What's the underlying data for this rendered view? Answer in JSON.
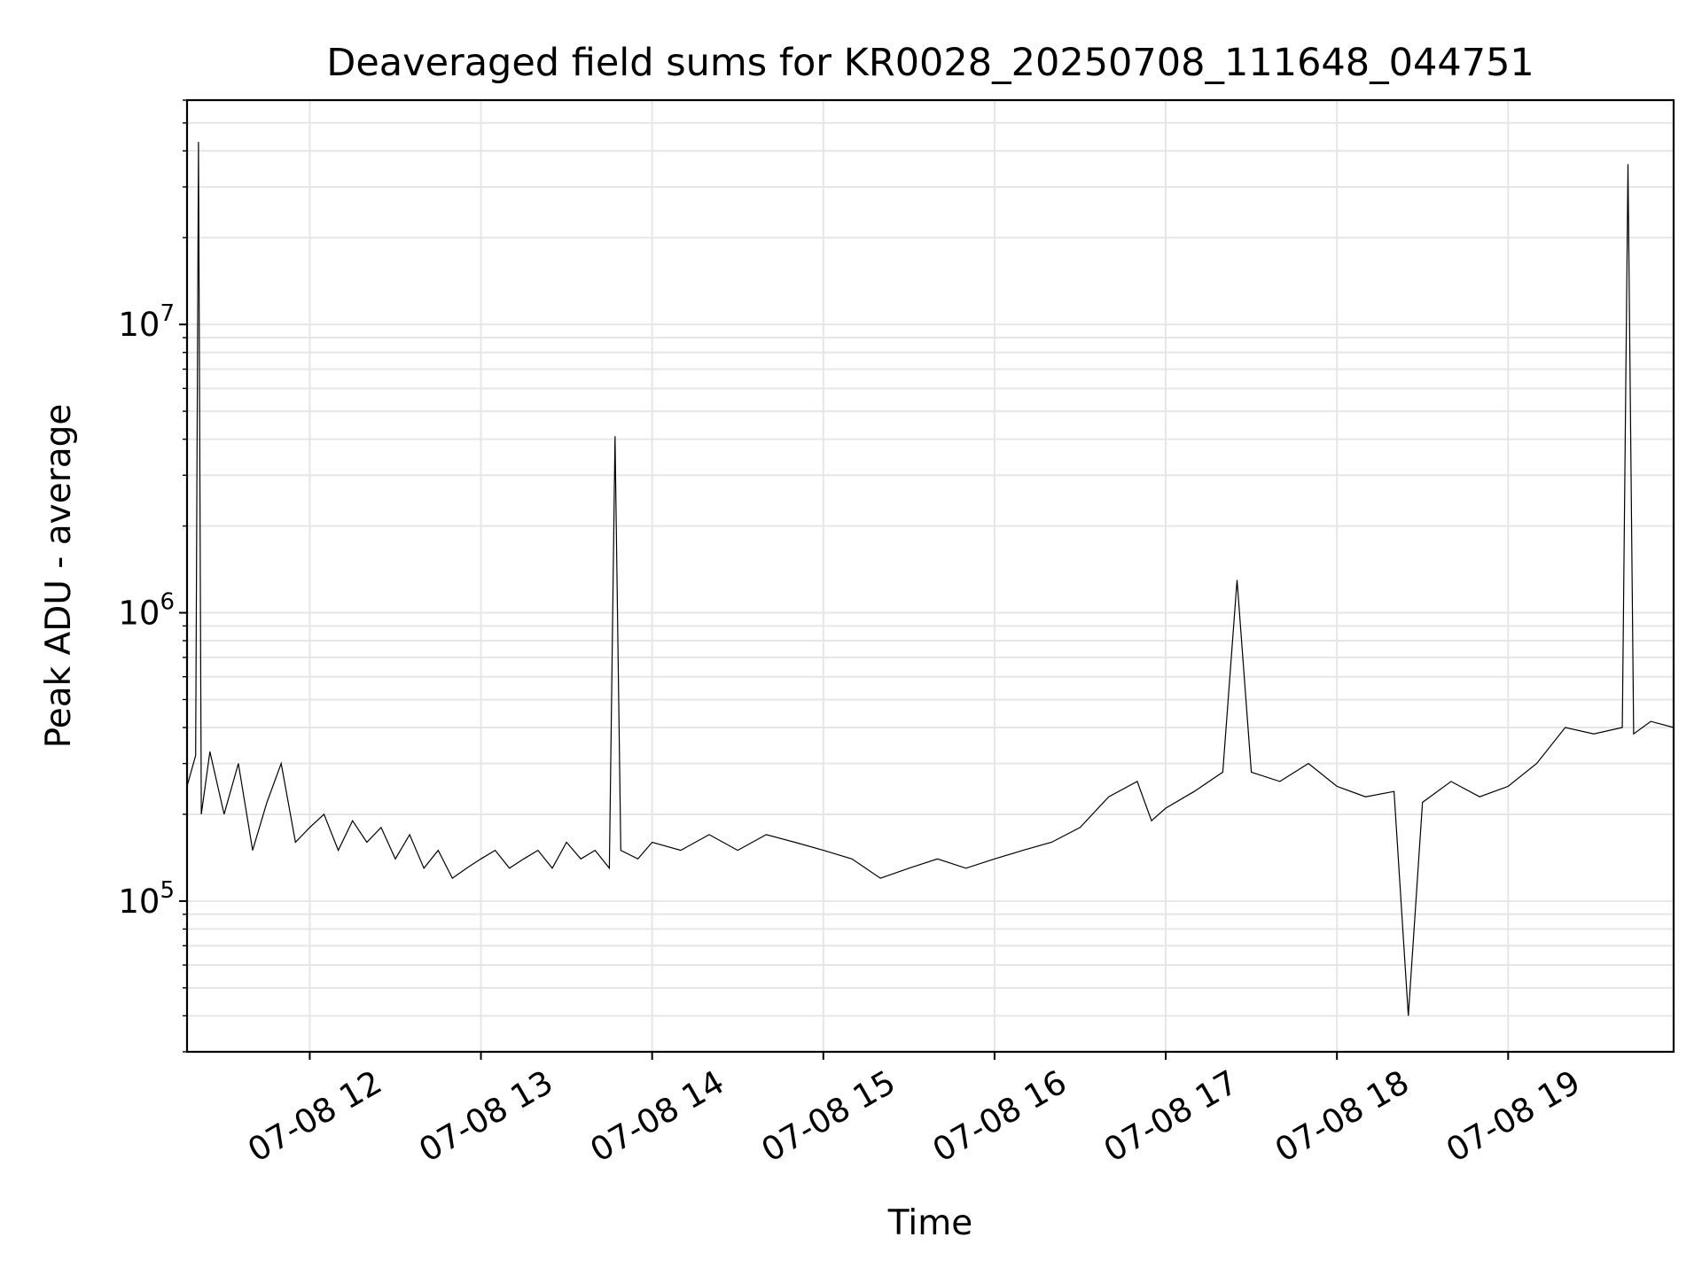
{
  "chart_data": {
    "type": "line",
    "title": "Deaveraged field sums for KR0028_20250708_111648_044751",
    "xlabel": "Time",
    "ylabel": "Peak ADU - average",
    "yscale": "log",
    "ylim": [
      30000,
      60000000
    ],
    "xlim": [
      "2025-07-08 11:17",
      "2025-07-08 19:58"
    ],
    "grid": true,
    "line_color": "#000000",
    "grid_color": "#e6e6e6",
    "x_ticks": [
      {
        "value": "2025-07-08 12:00",
        "label": "07-08 12"
      },
      {
        "value": "2025-07-08 13:00",
        "label": "07-08 13"
      },
      {
        "value": "2025-07-08 14:00",
        "label": "07-08 14"
      },
      {
        "value": "2025-07-08 15:00",
        "label": "07-08 15"
      },
      {
        "value": "2025-07-08 16:00",
        "label": "07-08 16"
      },
      {
        "value": "2025-07-08 17:00",
        "label": "07-08 17"
      },
      {
        "value": "2025-07-08 18:00",
        "label": "07-08 18"
      },
      {
        "value": "2025-07-08 19:00",
        "label": "07-08 19"
      }
    ],
    "y_ticks": [
      {
        "value": 100000,
        "base": "10",
        "exp": "5"
      },
      {
        "value": 1000000,
        "base": "10",
        "exp": "6"
      },
      {
        "value": 10000000,
        "base": "10",
        "exp": "7"
      }
    ],
    "series": [
      {
        "points": [
          [
            "2025-07-08 11:17",
            250000
          ],
          [
            "2025-07-08 11:20",
            320000
          ],
          [
            "2025-07-08 11:21",
            43000000
          ],
          [
            "2025-07-08 11:22",
            200000
          ],
          [
            "2025-07-08 11:25",
            330000
          ],
          [
            "2025-07-08 11:30",
            200000
          ],
          [
            "2025-07-08 11:35",
            300000
          ],
          [
            "2025-07-08 11:40",
            150000
          ],
          [
            "2025-07-08 11:45",
            220000
          ],
          [
            "2025-07-08 11:50",
            300000
          ],
          [
            "2025-07-08 11:55",
            160000
          ],
          [
            "2025-07-08 12:00",
            180000
          ],
          [
            "2025-07-08 12:05",
            200000
          ],
          [
            "2025-07-08 12:10",
            150000
          ],
          [
            "2025-07-08 12:15",
            190000
          ],
          [
            "2025-07-08 12:20",
            160000
          ],
          [
            "2025-07-08 12:25",
            180000
          ],
          [
            "2025-07-08 12:30",
            140000
          ],
          [
            "2025-07-08 12:35",
            170000
          ],
          [
            "2025-07-08 12:40",
            130000
          ],
          [
            "2025-07-08 12:45",
            150000
          ],
          [
            "2025-07-08 12:50",
            120000
          ],
          [
            "2025-07-08 12:55",
            130000
          ],
          [
            "2025-07-08 13:00",
            140000
          ],
          [
            "2025-07-08 13:05",
            150000
          ],
          [
            "2025-07-08 13:10",
            130000
          ],
          [
            "2025-07-08 13:15",
            140000
          ],
          [
            "2025-07-08 13:20",
            150000
          ],
          [
            "2025-07-08 13:25",
            130000
          ],
          [
            "2025-07-08 13:30",
            160000
          ],
          [
            "2025-07-08 13:35",
            140000
          ],
          [
            "2025-07-08 13:40",
            150000
          ],
          [
            "2025-07-08 13:45",
            130000
          ],
          [
            "2025-07-08 13:47",
            4100000
          ],
          [
            "2025-07-08 13:49",
            150000
          ],
          [
            "2025-07-08 13:55",
            140000
          ],
          [
            "2025-07-08 14:00",
            160000
          ],
          [
            "2025-07-08 14:10",
            150000
          ],
          [
            "2025-07-08 14:20",
            170000
          ],
          [
            "2025-07-08 14:30",
            150000
          ],
          [
            "2025-07-08 14:40",
            170000
          ],
          [
            "2025-07-08 14:50",
            160000
          ],
          [
            "2025-07-08 15:00",
            150000
          ],
          [
            "2025-07-08 15:10",
            140000
          ],
          [
            "2025-07-08 15:20",
            120000
          ],
          [
            "2025-07-08 15:30",
            130000
          ],
          [
            "2025-07-08 15:40",
            140000
          ],
          [
            "2025-07-08 15:50",
            130000
          ],
          [
            "2025-07-08 16:00",
            140000
          ],
          [
            "2025-07-08 16:10",
            150000
          ],
          [
            "2025-07-08 16:20",
            160000
          ],
          [
            "2025-07-08 16:30",
            180000
          ],
          [
            "2025-07-08 16:40",
            230000
          ],
          [
            "2025-07-08 16:50",
            260000
          ],
          [
            "2025-07-08 16:55",
            190000
          ],
          [
            "2025-07-08 17:00",
            210000
          ],
          [
            "2025-07-08 17:10",
            240000
          ],
          [
            "2025-07-08 17:20",
            280000
          ],
          [
            "2025-07-08 17:25",
            1300000
          ],
          [
            "2025-07-08 17:30",
            280000
          ],
          [
            "2025-07-08 17:40",
            260000
          ],
          [
            "2025-07-08 17:50",
            300000
          ],
          [
            "2025-07-08 18:00",
            250000
          ],
          [
            "2025-07-08 18:10",
            230000
          ],
          [
            "2025-07-08 18:20",
            240000
          ],
          [
            "2025-07-08 18:25",
            40000
          ],
          [
            "2025-07-08 18:30",
            220000
          ],
          [
            "2025-07-08 18:40",
            260000
          ],
          [
            "2025-07-08 18:50",
            230000
          ],
          [
            "2025-07-08 19:00",
            250000
          ],
          [
            "2025-07-08 19:10",
            300000
          ],
          [
            "2025-07-08 19:20",
            400000
          ],
          [
            "2025-07-08 19:30",
            380000
          ],
          [
            "2025-07-08 19:40",
            400000
          ],
          [
            "2025-07-08 19:42",
            36000000
          ],
          [
            "2025-07-08 19:44",
            380000
          ],
          [
            "2025-07-08 19:50",
            420000
          ],
          [
            "2025-07-08 19:58",
            400000
          ]
        ]
      }
    ]
  }
}
